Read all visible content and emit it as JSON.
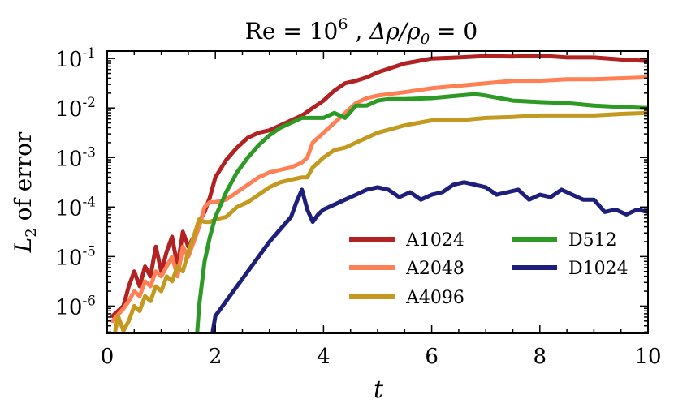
{
  "chart_data": {
    "type": "line",
    "title": "Re = 10⁶ , Δρ/ρ₀ = 0",
    "title_parts": {
      "re": "Re",
      "eq1": " = ",
      "base": "10",
      "exp": "6",
      "sep": " , ",
      "drho": "Δρ/ρ",
      "sub0": "0",
      "eq2": " = 0"
    },
    "xlabel": "t",
    "ylabel": "L₂ of error",
    "ylabel_parts": {
      "L": "L",
      "sub": "2",
      "rest": " of error"
    },
    "xlim": [
      0,
      10
    ],
    "ylim_log10": [
      -6.55,
      -0.85
    ],
    "yscale": "log",
    "xticks": [
      0,
      2,
      4,
      6,
      8,
      10
    ],
    "xtick_labels": [
      "0",
      "2",
      "4",
      "6",
      "8",
      "10"
    ],
    "yticks_exp": [
      -6,
      -5,
      -4,
      -3,
      -2,
      -1
    ],
    "ytick_labels": [
      {
        "base": "10",
        "exp": "-6"
      },
      {
        "base": "10",
        "exp": "-5"
      },
      {
        "base": "10",
        "exp": "-4"
      },
      {
        "base": "10",
        "exp": "-3"
      },
      {
        "base": "10",
        "exp": "-2"
      },
      {
        "base": "10",
        "exp": "-1"
      }
    ],
    "legend_position": "lower-right",
    "series": [
      {
        "name": "A1024",
        "color": "#b22222",
        "x": [
          0.1,
          0.3,
          0.4,
          0.5,
          0.6,
          0.7,
          0.8,
          0.9,
          1.0,
          1.1,
          1.2,
          1.3,
          1.4,
          1.5,
          1.6,
          1.7,
          1.8,
          1.9,
          2.0,
          2.2,
          2.4,
          2.6,
          2.8,
          3.0,
          3.2,
          3.4,
          3.6,
          3.8,
          4.0,
          4.2,
          4.4,
          4.6,
          4.8,
          5.0,
          5.5,
          6.0,
          6.5,
          7.0,
          7.5,
          8.0,
          8.5,
          9.0,
          9.5,
          10.0
        ],
        "logy": [
          -6.2,
          -6.0,
          -5.6,
          -5.3,
          -5.6,
          -5.2,
          -5.4,
          -4.8,
          -5.3,
          -4.9,
          -4.6,
          -5.2,
          -4.5,
          -4.8,
          -4.6,
          -4.3,
          -4.1,
          -3.8,
          -3.4,
          -3.05,
          -2.8,
          -2.6,
          -2.5,
          -2.45,
          -2.35,
          -2.25,
          -2.15,
          -2.0,
          -1.85,
          -1.65,
          -1.5,
          -1.45,
          -1.38,
          -1.28,
          -1.1,
          -1.0,
          -0.98,
          -0.95,
          -0.96,
          -0.94,
          -0.98,
          -0.98,
          -1.02,
          -1.05
        ]
      },
      {
        "name": "A2048",
        "color": "#ff8055",
        "x": [
          0.1,
          0.3,
          0.4,
          0.5,
          0.6,
          0.7,
          0.8,
          0.9,
          1.0,
          1.1,
          1.2,
          1.3,
          1.4,
          1.5,
          1.6,
          1.7,
          1.8,
          1.9,
          2.0,
          2.2,
          2.4,
          2.6,
          2.8,
          3.0,
          3.2,
          3.4,
          3.6,
          3.7,
          3.8,
          4.0,
          4.2,
          4.4,
          4.6,
          4.8,
          5.0,
          5.5,
          6.0,
          6.5,
          7.0,
          7.5,
          8.0,
          8.5,
          9.0,
          9.5,
          10.0
        ],
        "logy": [
          -6.3,
          -6.05,
          -5.9,
          -5.7,
          -5.8,
          -5.5,
          -5.6,
          -5.3,
          -5.4,
          -5.2,
          -5.0,
          -5.4,
          -4.8,
          -5.0,
          -4.7,
          -4.4,
          -4.0,
          -3.9,
          -3.9,
          -3.85,
          -3.7,
          -3.55,
          -3.4,
          -3.3,
          -3.25,
          -3.2,
          -3.1,
          -3.0,
          -2.7,
          -2.5,
          -2.3,
          -2.1,
          -1.9,
          -1.8,
          -1.75,
          -1.68,
          -1.6,
          -1.55,
          -1.5,
          -1.45,
          -1.45,
          -1.42,
          -1.42,
          -1.4,
          -1.38
        ]
      },
      {
        "name": "A4096",
        "color": "#c39a1f",
        "x": [
          0.15,
          0.2,
          0.3,
          0.4,
          0.5,
          0.6,
          0.7,
          0.8,
          0.9,
          1.0,
          1.1,
          1.2,
          1.3,
          1.4,
          1.5,
          1.6,
          1.7,
          1.8,
          1.9,
          2.0,
          2.2,
          2.4,
          2.6,
          2.8,
          3.0,
          3.2,
          3.4,
          3.6,
          3.7,
          3.8,
          4.0,
          4.2,
          4.4,
          4.6,
          4.8,
          5.0,
          5.5,
          6.0,
          6.5,
          7.0,
          7.5,
          8.0,
          8.5,
          9.0,
          9.5,
          10.0
        ],
        "logy": [
          -6.5,
          -6.2,
          -6.5,
          -6.3,
          -6.0,
          -6.1,
          -5.8,
          -5.9,
          -5.6,
          -5.7,
          -5.4,
          -5.5,
          -5.2,
          -5.3,
          -4.9,
          -4.6,
          -4.25,
          -4.3,
          -4.3,
          -4.25,
          -4.2,
          -4.0,
          -3.9,
          -3.75,
          -3.6,
          -3.5,
          -3.45,
          -3.4,
          -3.4,
          -3.2,
          -3.0,
          -2.85,
          -2.8,
          -2.7,
          -2.6,
          -2.5,
          -2.35,
          -2.25,
          -2.25,
          -2.2,
          -2.18,
          -2.15,
          -2.15,
          -2.15,
          -2.12,
          -2.1
        ]
      },
      {
        "name": "D512",
        "color": "#2e9a26",
        "x": [
          1.6,
          1.7,
          1.8,
          1.9,
          2.0,
          2.2,
          2.4,
          2.6,
          2.8,
          3.0,
          3.2,
          3.4,
          3.6,
          3.8,
          4.0,
          4.2,
          4.4,
          4.6,
          4.8,
          5.0,
          5.2,
          5.5,
          6.0,
          6.5,
          6.8,
          7.0,
          7.5,
          8.0,
          8.5,
          9.0,
          9.5,
          10.0
        ],
        "logy": [
          -7.5,
          -6.0,
          -5.1,
          -4.6,
          -4.2,
          -3.7,
          -3.3,
          -3.0,
          -2.75,
          -2.55,
          -2.4,
          -2.3,
          -2.2,
          -2.2,
          -2.2,
          -2.1,
          -2.2,
          -1.95,
          -1.95,
          -1.85,
          -1.82,
          -1.82,
          -1.8,
          -1.75,
          -1.72,
          -1.75,
          -1.85,
          -1.88,
          -1.9,
          -1.95,
          -1.98,
          -2.0
        ]
      },
      {
        "name": "D1024",
        "color": "#1d1f7a",
        "x": [
          1.8,
          2.0,
          2.2,
          2.4,
          2.6,
          2.8,
          3.0,
          3.2,
          3.4,
          3.5,
          3.6,
          3.7,
          3.8,
          3.9,
          4.0,
          4.2,
          4.4,
          4.6,
          4.8,
          5.0,
          5.2,
          5.4,
          5.6,
          5.8,
          6.0,
          6.2,
          6.4,
          6.6,
          6.8,
          7.0,
          7.2,
          7.4,
          7.6,
          7.8,
          8.0,
          8.2,
          8.4,
          8.6,
          8.8,
          9.0,
          9.2,
          9.4,
          9.6,
          9.8,
          10.0
        ],
        "logy": [
          -7.5,
          -6.2,
          -5.9,
          -5.6,
          -5.3,
          -5.0,
          -4.7,
          -4.45,
          -4.2,
          -3.9,
          -3.65,
          -4.05,
          -4.3,
          -4.15,
          -4.05,
          -3.95,
          -3.85,
          -3.75,
          -3.65,
          -3.6,
          -3.65,
          -3.8,
          -3.7,
          -3.85,
          -3.75,
          -3.7,
          -3.55,
          -3.5,
          -3.55,
          -3.6,
          -3.75,
          -3.7,
          -3.65,
          -3.85,
          -3.75,
          -3.8,
          -3.65,
          -3.75,
          -3.85,
          -3.85,
          -4.1,
          -4.05,
          -4.15,
          -4.05,
          -4.1
        ]
      }
    ]
  }
}
